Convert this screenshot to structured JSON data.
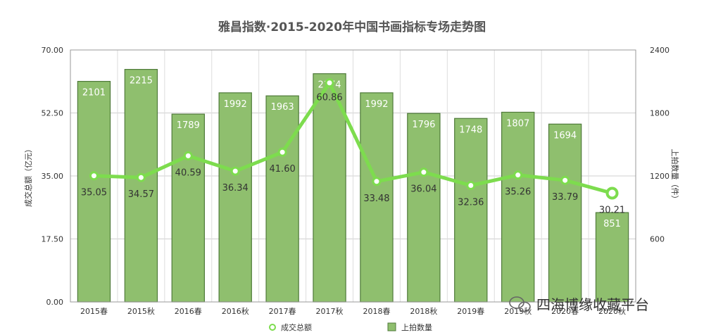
{
  "chart_data": {
    "type": "bar",
    "title": "雅昌指数·2015-2020年中国书画指标专场走势图",
    "categories": [
      "2015春",
      "2015秋",
      "2016春",
      "2016秋",
      "2017春",
      "2017秋",
      "2018春",
      "2018秋",
      "2019春",
      "2019秋",
      "2020春",
      "2020秋"
    ],
    "ylabel_left": "成交总额（亿元）",
    "ylabel_right": "上拍数量（件）",
    "yticks_left": [
      "0.00",
      "17.50",
      "35.00",
      "52.50",
      "70.00"
    ],
    "yticks_right": [
      "600",
      "1200",
      "1800",
      "2400"
    ],
    "ylim_left": [
      0,
      70
    ],
    "ylim_right": [
      0,
      2400
    ],
    "grid": true,
    "legend_position": "bottom",
    "series": [
      {
        "name": "上拍数量",
        "kind": "bar",
        "axis": "right",
        "color": "#8fbf6e",
        "values": [
          2101,
          2215,
          1789,
          1992,
          1963,
          2174,
          1992,
          1796,
          1748,
          1807,
          1694,
          851
        ],
        "labels": [
          "2101",
          "2215",
          "1789",
          "1992",
          "1963",
          "2174",
          "1992",
          "1796",
          "1748",
          "1807",
          "1694",
          "851"
        ]
      },
      {
        "name": "成交总额",
        "kind": "line",
        "axis": "left",
        "color": "#7ddc4e",
        "values": [
          35.05,
          34.57,
          40.59,
          36.34,
          41.6,
          60.86,
          33.48,
          36.04,
          32.36,
          35.26,
          33.79,
          30.21
        ],
        "labels": [
          "35.05",
          "34.57",
          "40.59",
          "36.34",
          "41.60",
          "60.86",
          "33.48",
          "36.04",
          "32.36",
          "35.26",
          "33.79",
          "30.21"
        ]
      }
    ]
  },
  "watermark": {
    "text": "四海博缘收藏平台",
    "icon": "wechat-icon"
  }
}
